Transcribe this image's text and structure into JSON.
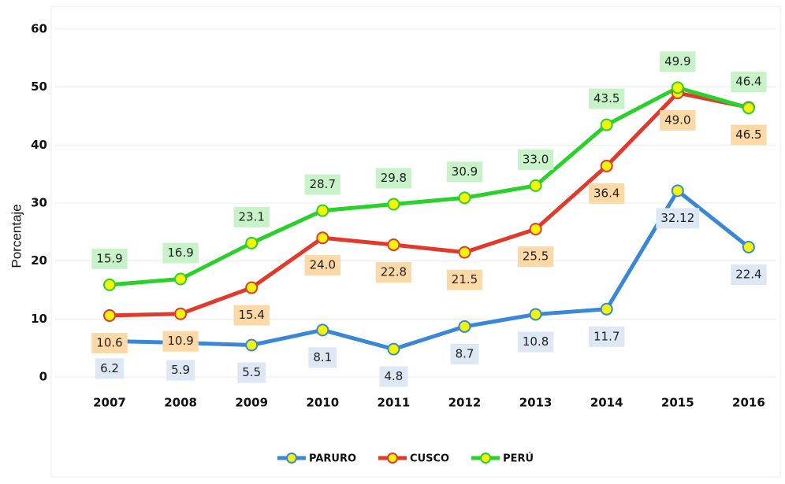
{
  "chart_data": {
    "type": "line",
    "y_label": "Porcentaje",
    "categories": [
      "2007",
      "2008",
      "2009",
      "2010",
      "2011",
      "2012",
      "2013",
      "2014",
      "2015",
      "2016"
    ],
    "series": [
      {
        "name": "PARURO",
        "color": "#3a87d6",
        "values": [
          6.2,
          5.9,
          5.5,
          8.1,
          4.8,
          8.7,
          10.8,
          11.7,
          32.12,
          22.4
        ]
      },
      {
        "name": "CUSCO",
        "color": "#e2392d",
        "values": [
          10.6,
          10.9,
          15.4,
          24.0,
          22.8,
          21.5,
          25.5,
          36.4,
          49.0,
          46.5
        ],
        "value_labels": [
          "10.6",
          "10.9",
          "15.4",
          "24.0",
          "22.8",
          "21.5",
          "25.5",
          "36.4",
          "49.0",
          "46.5"
        ]
      },
      {
        "name": "PERÚ",
        "color": "#2bd12b",
        "values": [
          15.9,
          16.9,
          23.1,
          28.7,
          29.8,
          30.9,
          33.0,
          43.5,
          49.9,
          46.4
        ],
        "value_labels": [
          "15.9",
          "16.9",
          "23.1",
          "28.7",
          "29.8",
          "30.9",
          "33.0",
          "43.5",
          "49.9",
          "46.4"
        ]
      }
    ],
    "ylim": [
      0,
      60
    ],
    "yticks": [
      0,
      10,
      20,
      30,
      40,
      50,
      60
    ],
    "grid": true,
    "legend": "bottom"
  }
}
